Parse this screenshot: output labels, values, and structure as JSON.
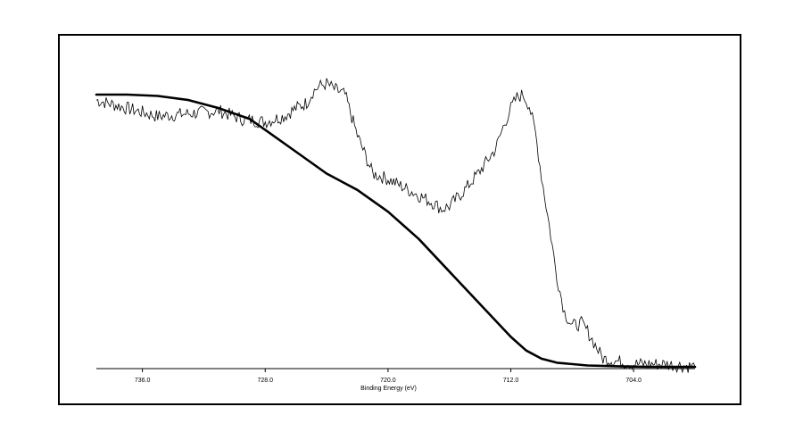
{
  "chart_data": {
    "type": "line",
    "title": "",
    "xlabel": "Binding Energy (eV)",
    "ylabel": "",
    "x_reversed": true,
    "xlim": [
      739.0,
      700.0
    ],
    "ylim": [
      0,
      100
    ],
    "grid": false,
    "legend": "none",
    "x_ticks": [
      736.0,
      728.0,
      720.0,
      712.0,
      704.0
    ],
    "x_tick_labels": [
      "736.0",
      "728.0",
      "720.0",
      "712.0",
      "704.0"
    ],
    "series": [
      {
        "style": "thin-noisy",
        "color": "#000000",
        "x": [
          739.0,
          737.0,
          735.0,
          733.0,
          731.0,
          729.5,
          728.0,
          726.8,
          726.0,
          725.3,
          724.9,
          724.5,
          724.0,
          723.5,
          722.8,
          722.0,
          721.0,
          720.0,
          719.0,
          718.0,
          717.0,
          716.5,
          716.0,
          715.0,
          714.0,
          713.0,
          712.5,
          712.0,
          711.6,
          711.2,
          710.8,
          710.4,
          710.0,
          709.5,
          709.0,
          708.5,
          708.0,
          707.4,
          707.0,
          706.5,
          706.0,
          705.0,
          704.0,
          703.0,
          702.0,
          700.0
        ],
        "y": [
          98,
          95,
          92,
          93,
          94,
          91,
          90,
          92,
          95,
          97,
          101,
          103,
          104,
          102,
          100,
          85,
          71,
          69,
          66,
          63,
          60,
          58,
          59,
          65,
          72,
          80,
          88,
          95,
          99,
          100,
          96,
          86,
          70,
          52,
          33,
          20,
          15,
          16,
          13,
          8,
          3,
          2,
          1,
          1,
          1,
          0
        ]
      },
      {
        "style": "thick-background",
        "color": "#000000",
        "x": [
          739.0,
          737.0,
          735.0,
          733.0,
          731.0,
          729.0,
          728.0,
          726.0,
          724.0,
          722.0,
          720.0,
          718.0,
          716.0,
          714.0,
          712.0,
          711.0,
          710.0,
          709.0,
          707.0,
          705.0,
          703.0,
          700.0
        ],
        "y": [
          100,
          100,
          99.5,
          98,
          95,
          91,
          87,
          79,
          71,
          65,
          57,
          47,
          35,
          23,
          11,
          6,
          3,
          1.5,
          0.5,
          0.2,
          0,
          0
        ]
      }
    ]
  }
}
